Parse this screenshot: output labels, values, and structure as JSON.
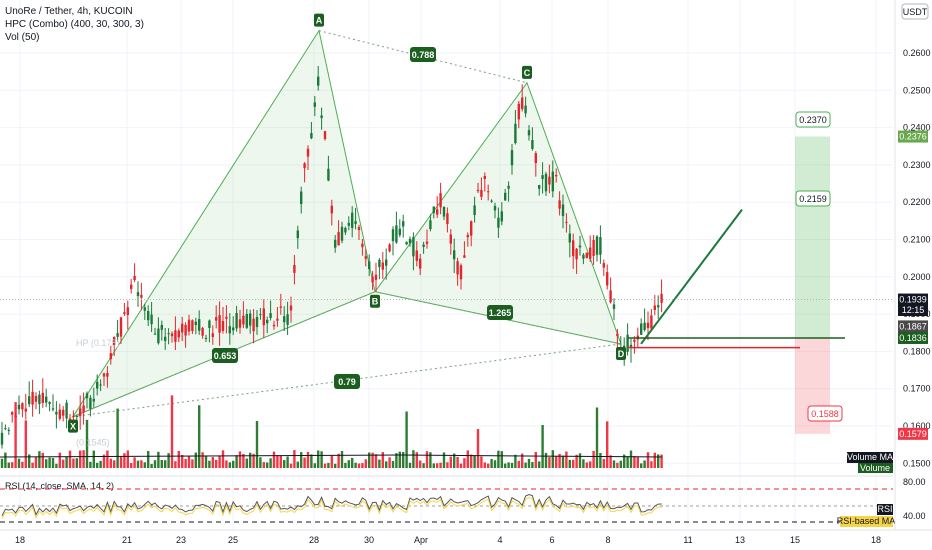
{
  "header": {
    "symbol_line": "UnoRe / Tether, 4h, KUCOIN",
    "indicator_line": "HPC (Combo) (400, 30, 300, 3)",
    "volume_line": "Vol (50)",
    "currency": "USDT"
  },
  "chart_data": {
    "type": "candlestick",
    "y_axis": {
      "ticks": [
        "0.2600",
        "0.2500",
        "0.2400",
        "0.2300",
        "0.2200",
        "0.2100",
        "0.2000",
        "0.1900",
        "0.1800",
        "0.1700",
        "0.1600",
        "0.1500"
      ],
      "ylim": [
        0.15,
        0.265
      ]
    },
    "x_axis": {
      "ticks": [
        "18",
        "21",
        "23",
        "25",
        "28",
        "30",
        "Apr",
        "4",
        "6",
        "8",
        "11",
        "13",
        "15",
        "18"
      ]
    },
    "price_tags": [
      {
        "label": "0.2376",
        "value": 0.2376,
        "color": "#6aa84f"
      },
      {
        "label": "0.1939",
        "value": 0.1939,
        "color": "#131722"
      },
      {
        "label": "12:15",
        "value": 0.1911,
        "color": "#131722"
      },
      {
        "label": "0.1867",
        "value": 0.1867,
        "color": "#4a4a4a"
      },
      {
        "label": "0.1836",
        "value": 0.1836,
        "color": "#1b5e20"
      },
      {
        "label": "0.1579",
        "value": 0.1579,
        "color": "#f23645"
      }
    ],
    "harmonic_points": [
      {
        "label": "X",
        "value": 0.1625
      },
      {
        "label": "A",
        "value": 0.266
      },
      {
        "label": "B",
        "value": 0.196
      },
      {
        "label": "C",
        "value": 0.252
      },
      {
        "label": "D",
        "value": 0.182
      }
    ],
    "ratios": [
      "0.788",
      "0.653",
      "1.265",
      "0.79"
    ],
    "faded_labels": [
      "HP (0.178)",
      "(0.1545)"
    ],
    "target_boxes": [
      {
        "label": "0.2370",
        "value": 0.237
      },
      {
        "label": "0.2159",
        "value": 0.2159
      },
      {
        "label": "0.1588",
        "value": 0.1588
      }
    ],
    "volume_badges": [
      "Volume MA",
      "Volume"
    ],
    "rsi": {
      "title": "RSI (14, close, SMA, 14, 2)",
      "ticks": [
        "80.00",
        "40.00"
      ],
      "badges": [
        "RSI",
        "RSI-based MA"
      ]
    },
    "candles_seed": 42
  }
}
